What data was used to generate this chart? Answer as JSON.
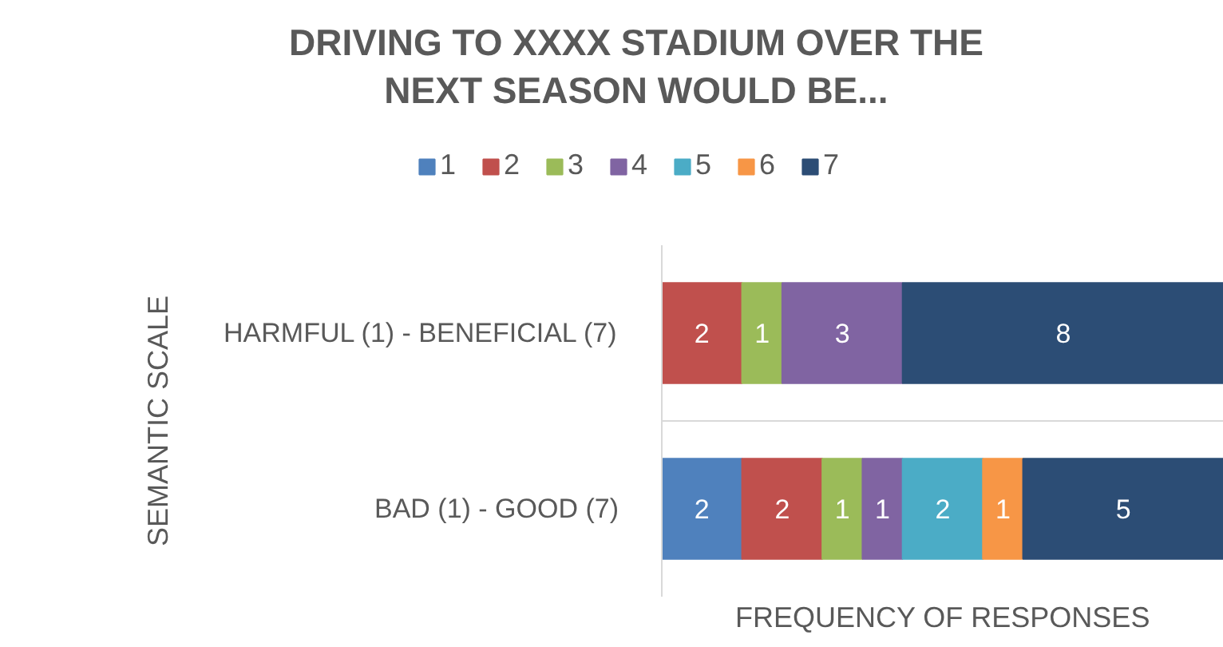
{
  "chart_data": {
    "type": "bar",
    "orientation": "horizontal",
    "stacked": true,
    "title": "DRIVING TO XXXX STADIUM OVER THE NEXT SEASON WOULD BE...",
    "xlabel": "FREQUENCY OF RESPONSES",
    "ylabel": "SEMANTIC SCALE",
    "categories": [
      "HARMFUL (1) - BENEFICIAL (7)",
      "BAD (1) - GOOD (7)"
    ],
    "series": [
      {
        "name": "1",
        "color": "#4f81bd",
        "values": [
          null,
          2
        ]
      },
      {
        "name": "2",
        "color": "#c0504d",
        "values": [
          2,
          2
        ]
      },
      {
        "name": "3",
        "color": "#9bbb59",
        "values": [
          1,
          1
        ]
      },
      {
        "name": "4",
        "color": "#8064a2",
        "values": [
          3,
          1
        ]
      },
      {
        "name": "5",
        "color": "#4bacc6",
        "values": [
          null,
          2
        ]
      },
      {
        "name": "6",
        "color": "#f79646",
        "values": [
          null,
          1
        ]
      },
      {
        "name": "7",
        "color": "#2c4d75",
        "values": [
          8,
          5
        ]
      }
    ],
    "data_labels": true,
    "grid": "y",
    "legend": "top"
  }
}
